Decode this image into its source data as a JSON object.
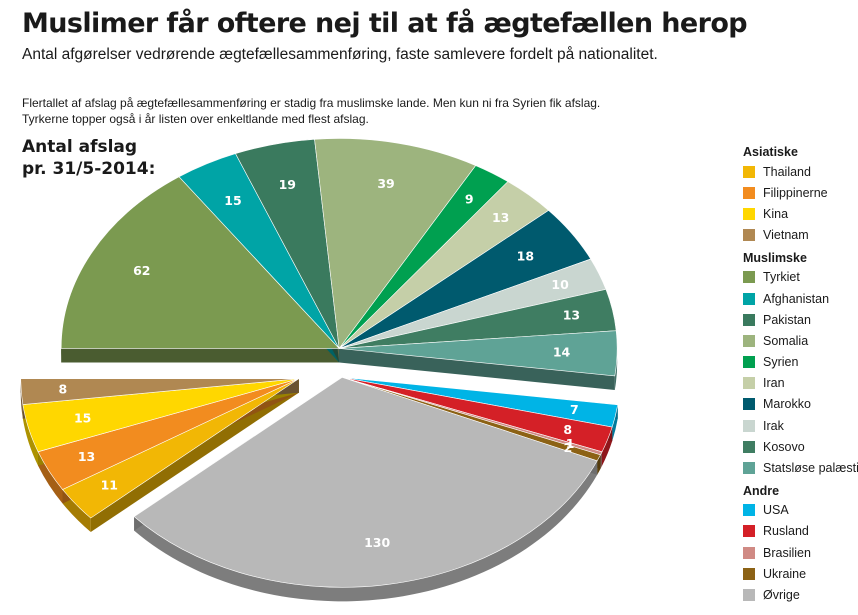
{
  "header": {
    "title": "Muslimer får oftere nej til at få ægtefællen herop",
    "subtitle": "Antal afgørelser vedrørende ægtefællesammenføring, faste samlevere fordelt på nationalitet.",
    "intro_line1": "Flertallet af afslag på ægtefællesammenføring er stadig fra muslimske lande. Men kun ni fra Syrien fik afslag.",
    "intro_line2": "Tyrkerne topper også i år listen over enkeltlande med flest afslag.",
    "count_label_line1": "Antal afslag",
    "count_label_line2": "pr. 31/5-2014:"
  },
  "legend": [
    {
      "group": "Asiatiske",
      "items": [
        {
          "name": "Thailand",
          "color": "#f2b705"
        },
        {
          "name": "Filippinerne",
          "color": "#f28c1f"
        },
        {
          "name": "Kina",
          "color": "#ffd700"
        },
        {
          "name": "Vietnam",
          "color": "#b08852"
        }
      ]
    },
    {
      "group": "Muslimske",
      "items": [
        {
          "name": "Tyrkiet",
          "color": "#7b9a50"
        },
        {
          "name": "Afghanistan",
          "color": "#00a4a6"
        },
        {
          "name": "Pakistan",
          "color": "#3a7a5e"
        },
        {
          "name": "Somalia",
          "color": "#9db47e"
        },
        {
          "name": "Syrien",
          "color": "#00a050"
        },
        {
          "name": "Iran",
          "color": "#c5cfa8"
        },
        {
          "name": "Marokko",
          "color": "#005a6e"
        },
        {
          "name": "Irak",
          "color": "#c9d6d0"
        },
        {
          "name": "Kosovo",
          "color": "#3f7d62"
        },
        {
          "name": "Statsløse palæstinensere",
          "color": "#5fa396"
        }
      ]
    },
    {
      "group": "Andre",
      "items": [
        {
          "name": "USA",
          "color": "#00b4e6"
        },
        {
          "name": "Rusland",
          "color": "#d42027"
        },
        {
          "name": "Brasilien",
          "color": "#d08a84"
        },
        {
          "name": "Ukraine",
          "color": "#8c6215"
        },
        {
          "name": "Øvrige",
          "color": "#b8b8b8"
        }
      ]
    }
  ],
  "chart_data": {
    "type": "pie",
    "title": "Antal afslag pr. 31/5-2014:",
    "groups": [
      "Asiatiske",
      "Muslimske",
      "Andre"
    ],
    "slices": [
      {
        "name": "Tyrkiet",
        "value": 62,
        "group": "Muslimske",
        "color": "#7b9a50"
      },
      {
        "name": "Afghanistan",
        "value": 15,
        "group": "Muslimske",
        "color": "#00a4a6"
      },
      {
        "name": "Pakistan",
        "value": 19,
        "group": "Muslimske",
        "color": "#3a7a5e"
      },
      {
        "name": "Somalia",
        "value": 39,
        "group": "Muslimske",
        "color": "#9db47e"
      },
      {
        "name": "Syrien",
        "value": 9,
        "group": "Muslimske",
        "color": "#00a050"
      },
      {
        "name": "Iran",
        "value": 13,
        "group": "Muslimske",
        "color": "#c5cfa8"
      },
      {
        "name": "Marokko",
        "value": 18,
        "group": "Muslimske",
        "color": "#005a6e"
      },
      {
        "name": "Irak",
        "value": 10,
        "group": "Muslimske",
        "color": "#c9d6d0"
      },
      {
        "name": "Kosovo",
        "value": 13,
        "group": "Muslimske",
        "color": "#3f7d62"
      },
      {
        "name": "Statsløse palæstinensere",
        "value": 14,
        "group": "Muslimske",
        "color": "#5fa396"
      },
      {
        "name": "USA",
        "value": 7,
        "group": "Andre",
        "color": "#00b4e6"
      },
      {
        "name": "Rusland",
        "value": 8,
        "group": "Andre",
        "color": "#d42027"
      },
      {
        "name": "Brasilien",
        "value": 1,
        "group": "Andre",
        "color": "#d08a84"
      },
      {
        "name": "Ukraine",
        "value": 2,
        "group": "Andre",
        "color": "#8c6215"
      },
      {
        "name": "Øvrige",
        "value": 130,
        "group": "Andre",
        "color": "#b8b8b8"
      },
      {
        "name": "Thailand",
        "value": 11,
        "group": "Asiatiske",
        "color": "#f2b705"
      },
      {
        "name": "Filippinerne",
        "value": 13,
        "group": "Asiatiske",
        "color": "#f28c1f"
      },
      {
        "name": "Kina",
        "value": 15,
        "group": "Asiatiske",
        "color": "#ffd700"
      },
      {
        "name": "Vietnam",
        "value": 8,
        "group": "Asiatiske",
        "color": "#b08852"
      }
    ]
  }
}
